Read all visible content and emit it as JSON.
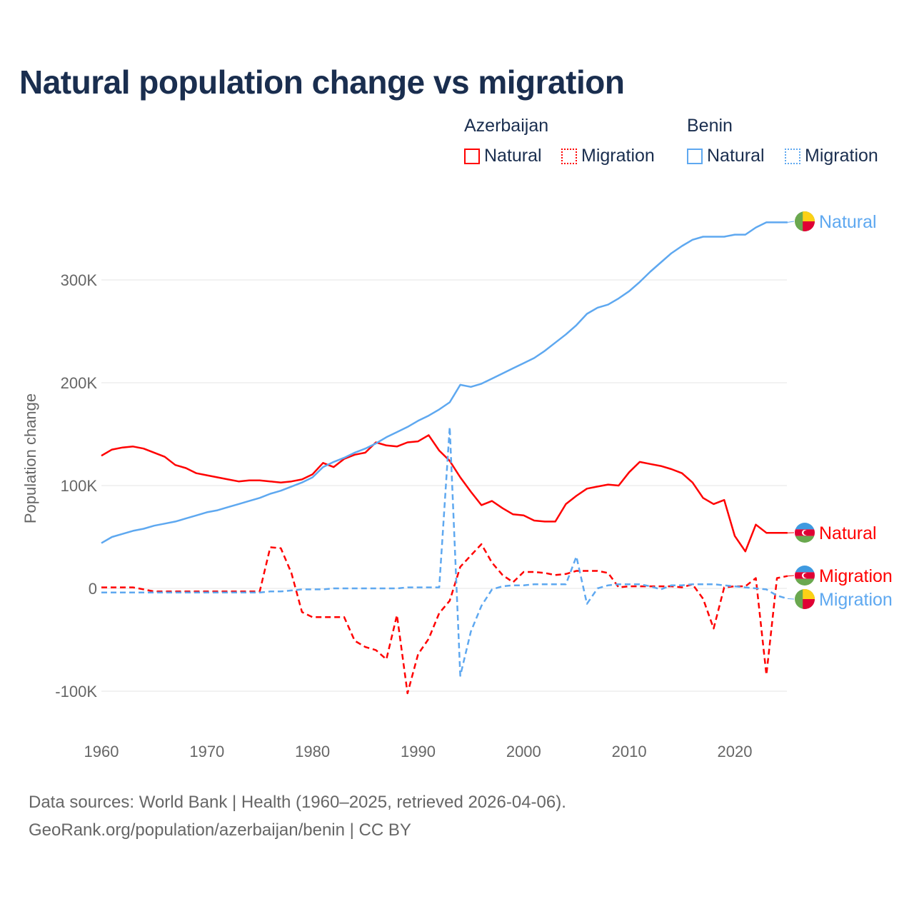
{
  "title": "Natural population change vs migration",
  "legend": {
    "groups": [
      {
        "name": "Azerbaijan",
        "items": [
          "Natural",
          "Migration"
        ]
      },
      {
        "name": "Benin",
        "items": [
          "Natural",
          "Migration"
        ]
      }
    ]
  },
  "footer": {
    "line1": "Data sources: World Bank | Health (1960–2025, retrieved 2026-04-06).",
    "line2": "GeoRank.org/population/azerbaijan/benin | CC BY"
  },
  "colors": {
    "azerbaijan": "#ff0000",
    "benin": "#5ea8f0"
  },
  "chart_data": {
    "type": "line",
    "title": "Natural population change vs migration",
    "xlabel": "",
    "ylabel": "Population change",
    "xlim": [
      1960,
      2025
    ],
    "ylim": [
      -100000,
      360000
    ],
    "xticks": [
      "1960",
      "1970",
      "1980",
      "1990",
      "2000",
      "2010",
      "2020"
    ],
    "yticks": [
      {
        "v": -100000,
        "label": "-100K"
      },
      {
        "v": 0,
        "label": "0"
      },
      {
        "v": 100000,
        "label": "100K"
      },
      {
        "v": 200000,
        "label": "200K"
      },
      {
        "v": 300000,
        "label": "300K"
      }
    ],
    "x_start": 1960,
    "series": [
      {
        "name": "Azerbaijan Natural",
        "country": "azerbaijan",
        "dash": false,
        "end_label": "Natural",
        "values": [
          129,
          135,
          137,
          138,
          136,
          132,
          128,
          120,
          117,
          112,
          110,
          108,
          106,
          104,
          105,
          105,
          104,
          103,
          104,
          106,
          111,
          122,
          118,
          126,
          130,
          132,
          142,
          139,
          138,
          142,
          143,
          149,
          134,
          124,
          108,
          94,
          81,
          85,
          78,
          72,
          71,
          66,
          65,
          65,
          82,
          90,
          97,
          99,
          101,
          100,
          113,
          123,
          121,
          119,
          116,
          112,
          103,
          88,
          82,
          86,
          51,
          36,
          62,
          54,
          54,
          54
        ]
      },
      {
        "name": "Azerbaijan Migration",
        "country": "azerbaijan",
        "dash": true,
        "end_label": "Migration",
        "values": [
          1,
          1,
          1,
          1,
          -1,
          -3,
          -3,
          -3,
          -3,
          -3,
          -3,
          -3,
          -3,
          -3,
          -3,
          -3,
          40,
          39,
          15,
          -23,
          -28,
          -28,
          -28,
          -28,
          -51,
          -57,
          -60,
          -69,
          -26,
          -102,
          -64,
          -49,
          -24,
          -12,
          21,
          32,
          43,
          25,
          13,
          6,
          16,
          16,
          15,
          13,
          14,
          17,
          17,
          17,
          15,
          1,
          2,
          2,
          2,
          2,
          2,
          1,
          4,
          -10,
          -39,
          1,
          2,
          2,
          10,
          -84,
          10,
          12
        ]
      },
      {
        "name": "Benin Natural",
        "country": "benin",
        "dash": false,
        "end_label": "Natural",
        "values": [
          44,
          50,
          53,
          56,
          58,
          61,
          63,
          65,
          68,
          71,
          74,
          76,
          79,
          82,
          85,
          88,
          92,
          95,
          99,
          103,
          108,
          118,
          123,
          127,
          132,
          136,
          141,
          147,
          152,
          157,
          163,
          168,
          174,
          181,
          198,
          196,
          199,
          204,
          209,
          214,
          219,
          224,
          231,
          239,
          247,
          256,
          267,
          273,
          276,
          282,
          289,
          298,
          308,
          317,
          326,
          333,
          339,
          342,
          342,
          342,
          344,
          344,
          351,
          356,
          356,
          356
        ]
      },
      {
        "name": "Benin Migration",
        "country": "benin",
        "dash": true,
        "end_label": "Migration",
        "values": [
          -4,
          -4,
          -4,
          -4,
          -4,
          -4,
          -4,
          -4,
          -4,
          -4,
          -4,
          -4,
          -4,
          -4,
          -4,
          -4,
          -3,
          -3,
          -2,
          -1,
          -1,
          -1,
          0,
          0,
          0,
          0,
          0,
          0,
          0,
          1,
          1,
          1,
          1,
          157,
          -85,
          -42,
          -17,
          -1,
          2,
          3,
          3,
          4,
          4,
          4,
          4,
          31,
          -15,
          0,
          3,
          4,
          4,
          4,
          2,
          -1,
          3,
          3,
          4,
          4,
          4,
          3,
          2,
          1,
          0,
          -1,
          -7,
          -10
        ]
      }
    ],
    "value_unit": "thousands"
  }
}
